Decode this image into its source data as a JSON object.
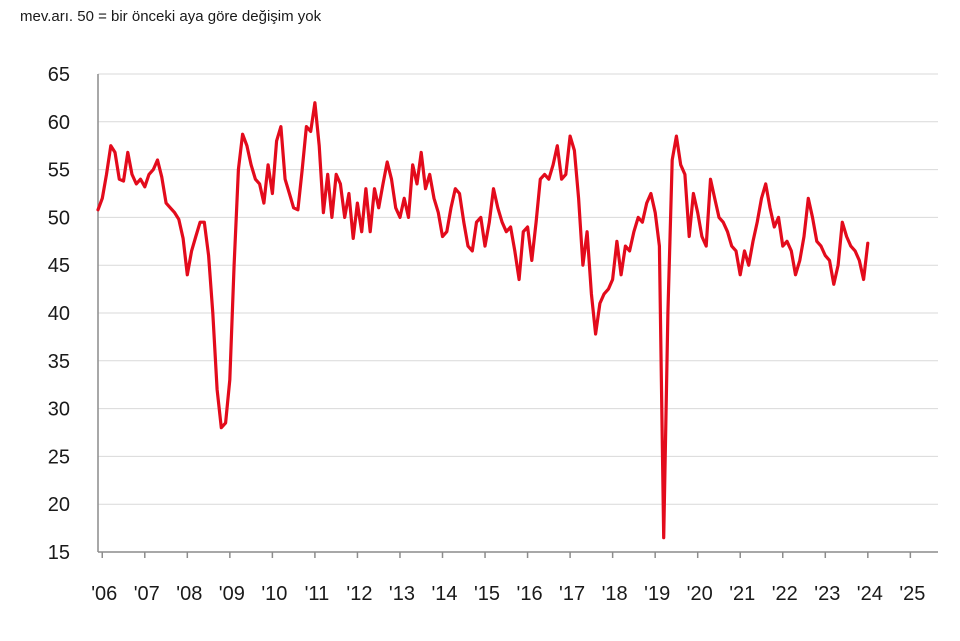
{
  "subtitle": "mev.arı. 50 = bir önceki aya göre değişim yok",
  "chart_data": {
    "type": "line",
    "title": "",
    "subtitle": "mev.arı. 50 = bir önceki aya göre değişim yok",
    "xlabel": "",
    "ylabel": "",
    "ylim": [
      15,
      65
    ],
    "yticks": [
      15,
      20,
      25,
      30,
      35,
      40,
      45,
      50,
      55,
      60,
      65
    ],
    "xlim": [
      2006.0,
      2025.75
    ],
    "xticks": [
      {
        "label": "'06",
        "x": 2006.1
      },
      {
        "label": "'07",
        "x": 2007.1
      },
      {
        "label": "'08",
        "x": 2008.1
      },
      {
        "label": "'09",
        "x": 2009.1
      },
      {
        "label": "'10",
        "x": 2010.1
      },
      {
        "label": "'11",
        "x": 2011.1
      },
      {
        "label": "'12",
        "x": 2012.1
      },
      {
        "label": "'13",
        "x": 2013.1
      },
      {
        "label": "'14",
        "x": 2014.1
      },
      {
        "label": "'15",
        "x": 2015.1
      },
      {
        "label": "'16",
        "x": 2016.1
      },
      {
        "label": "'17",
        "x": 2017.1
      },
      {
        "label": "'18",
        "x": 2018.1
      },
      {
        "label": "'19",
        "x": 2019.1
      },
      {
        "label": "'20",
        "x": 2020.1
      },
      {
        "label": "'21",
        "x": 2021.1
      },
      {
        "label": "'22",
        "x": 2022.1
      },
      {
        "label": "'23",
        "x": 2023.1
      },
      {
        "label": "'24",
        "x": 2024.1
      },
      {
        "label": "'25",
        "x": 2025.1
      }
    ],
    "grid": true,
    "legend": "none",
    "series": [
      {
        "color": "#e30b1c",
        "points": [
          [
            2006.0,
            50.8
          ],
          [
            2006.1,
            52.0
          ],
          [
            2006.2,
            54.5
          ],
          [
            2006.3,
            57.5
          ],
          [
            2006.4,
            56.8
          ],
          [
            2006.5,
            54.0
          ],
          [
            2006.6,
            53.8
          ],
          [
            2006.7,
            56.8
          ],
          [
            2006.8,
            54.5
          ],
          [
            2006.9,
            53.5
          ],
          [
            2007.0,
            54.0
          ],
          [
            2007.1,
            53.2
          ],
          [
            2007.2,
            54.5
          ],
          [
            2007.3,
            55.0
          ],
          [
            2007.4,
            56.0
          ],
          [
            2007.5,
            54.2
          ],
          [
            2007.6,
            51.5
          ],
          [
            2007.7,
            51.0
          ],
          [
            2007.8,
            50.5
          ],
          [
            2007.9,
            49.8
          ],
          [
            2008.0,
            47.8
          ],
          [
            2008.1,
            44.0
          ],
          [
            2008.2,
            46.5
          ],
          [
            2008.3,
            48.0
          ],
          [
            2008.4,
            49.5
          ],
          [
            2008.5,
            49.5
          ],
          [
            2008.6,
            46.0
          ],
          [
            2008.7,
            40.0
          ],
          [
            2008.8,
            32.0
          ],
          [
            2008.9,
            28.0
          ],
          [
            2009.0,
            28.5
          ],
          [
            2009.1,
            33.0
          ],
          [
            2009.2,
            45.0
          ],
          [
            2009.3,
            55.0
          ],
          [
            2009.4,
            58.7
          ],
          [
            2009.5,
            57.5
          ],
          [
            2009.6,
            55.5
          ],
          [
            2009.7,
            54.0
          ],
          [
            2009.8,
            53.5
          ],
          [
            2009.9,
            51.5
          ],
          [
            2010.0,
            55.5
          ],
          [
            2010.1,
            52.5
          ],
          [
            2010.2,
            58.0
          ],
          [
            2010.3,
            59.5
          ],
          [
            2010.4,
            54.0
          ],
          [
            2010.5,
            52.5
          ],
          [
            2010.6,
            51.0
          ],
          [
            2010.7,
            50.8
          ],
          [
            2010.8,
            55.0
          ],
          [
            2010.9,
            59.5
          ],
          [
            2011.0,
            59.0
          ],
          [
            2011.1,
            62.0
          ],
          [
            2011.2,
            57.5
          ],
          [
            2011.3,
            50.5
          ],
          [
            2011.4,
            54.5
          ],
          [
            2011.5,
            50.0
          ],
          [
            2011.6,
            54.5
          ],
          [
            2011.7,
            53.5
          ],
          [
            2011.8,
            50.0
          ],
          [
            2011.9,
            52.5
          ],
          [
            2012.0,
            47.8
          ],
          [
            2012.1,
            51.5
          ],
          [
            2012.2,
            48.5
          ],
          [
            2012.3,
            53.0
          ],
          [
            2012.4,
            48.5
          ],
          [
            2012.5,
            53.0
          ],
          [
            2012.6,
            51.0
          ],
          [
            2012.7,
            53.5
          ],
          [
            2012.8,
            55.8
          ],
          [
            2012.9,
            54.0
          ],
          [
            2013.0,
            51.0
          ],
          [
            2013.1,
            50.0
          ],
          [
            2013.2,
            52.0
          ],
          [
            2013.3,
            50.0
          ],
          [
            2013.4,
            55.5
          ],
          [
            2013.5,
            53.5
          ],
          [
            2013.6,
            56.8
          ],
          [
            2013.7,
            53.0
          ],
          [
            2013.8,
            54.5
          ],
          [
            2013.9,
            52.0
          ],
          [
            2014.0,
            50.5
          ],
          [
            2014.1,
            48.0
          ],
          [
            2014.2,
            48.5
          ],
          [
            2014.3,
            51.0
          ],
          [
            2014.4,
            53.0
          ],
          [
            2014.5,
            52.5
          ],
          [
            2014.6,
            49.5
          ],
          [
            2014.7,
            47.0
          ],
          [
            2014.8,
            46.5
          ],
          [
            2014.9,
            49.5
          ],
          [
            2015.0,
            50.0
          ],
          [
            2015.1,
            47.0
          ],
          [
            2015.2,
            49.5
          ],
          [
            2015.3,
            53.0
          ],
          [
            2015.4,
            51.0
          ],
          [
            2015.5,
            49.5
          ],
          [
            2015.6,
            48.5
          ],
          [
            2015.7,
            49.0
          ],
          [
            2015.8,
            46.5
          ],
          [
            2015.9,
            43.5
          ],
          [
            2016.0,
            48.5
          ],
          [
            2016.1,
            49.0
          ],
          [
            2016.2,
            45.5
          ],
          [
            2016.3,
            49.5
          ],
          [
            2016.4,
            54.0
          ],
          [
            2016.5,
            54.5
          ],
          [
            2016.6,
            54.0
          ],
          [
            2016.7,
            55.5
          ],
          [
            2016.8,
            57.5
          ],
          [
            2016.9,
            54.0
          ],
          [
            2017.0,
            54.5
          ],
          [
            2017.1,
            58.5
          ],
          [
            2017.2,
            57.0
          ],
          [
            2017.3,
            52.0
          ],
          [
            2017.4,
            45.0
          ],
          [
            2017.5,
            48.5
          ],
          [
            2017.6,
            42.0
          ],
          [
            2017.7,
            37.8
          ],
          [
            2017.8,
            41.0
          ],
          [
            2017.9,
            42.0
          ],
          [
            2018.0,
            42.5
          ],
          [
            2018.1,
            43.5
          ],
          [
            2018.2,
            47.5
          ],
          [
            2018.3,
            44.0
          ],
          [
            2018.4,
            47.0
          ],
          [
            2018.5,
            46.5
          ],
          [
            2018.6,
            48.5
          ],
          [
            2018.7,
            50.0
          ],
          [
            2018.8,
            49.5
          ],
          [
            2018.9,
            51.5
          ],
          [
            2019.0,
            52.5
          ],
          [
            2019.1,
            50.5
          ],
          [
            2019.2,
            47.0
          ],
          [
            2019.3,
            16.5
          ],
          [
            2019.4,
            40.0
          ],
          [
            2019.5,
            56.0
          ],
          [
            2019.6,
            58.5
          ],
          [
            2019.7,
            55.5
          ],
          [
            2019.8,
            54.5
          ],
          [
            2019.9,
            48.0
          ],
          [
            2020.0,
            52.5
          ],
          [
            2020.1,
            50.5
          ],
          [
            2020.2,
            48.0
          ],
          [
            2020.3,
            47.0
          ],
          [
            2020.4,
            54.0
          ],
          [
            2020.5,
            52.0
          ],
          [
            2020.6,
            50.0
          ],
          [
            2020.7,
            49.5
          ],
          [
            2020.8,
            48.5
          ],
          [
            2020.9,
            47.0
          ],
          [
            2021.0,
            46.5
          ],
          [
            2021.1,
            44.0
          ],
          [
            2021.2,
            46.5
          ],
          [
            2021.3,
            45.0
          ],
          [
            2021.4,
            47.5
          ],
          [
            2021.5,
            49.5
          ],
          [
            2021.6,
            52.0
          ],
          [
            2021.7,
            53.5
          ],
          [
            2021.8,
            51.0
          ],
          [
            2021.9,
            49.0
          ],
          [
            2022.0,
            50.0
          ],
          [
            2022.1,
            47.0
          ],
          [
            2022.2,
            47.5
          ],
          [
            2022.3,
            46.5
          ],
          [
            2022.4,
            44.0
          ],
          [
            2022.5,
            45.5
          ],
          [
            2022.6,
            48.0
          ],
          [
            2022.7,
            52.0
          ],
          [
            2022.8,
            50.0
          ],
          [
            2022.9,
            47.5
          ],
          [
            2023.0,
            47.0
          ],
          [
            2023.1,
            46.0
          ],
          [
            2023.2,
            45.5
          ],
          [
            2023.3,
            43.0
          ],
          [
            2023.4,
            45.0
          ],
          [
            2023.5,
            49.5
          ],
          [
            2023.6,
            48.0
          ],
          [
            2023.7,
            47.0
          ],
          [
            2023.8,
            46.5
          ],
          [
            2023.9,
            45.5
          ],
          [
            2024.0,
            43.5
          ],
          [
            2024.1,
            47.3
          ]
        ]
      }
    ]
  }
}
